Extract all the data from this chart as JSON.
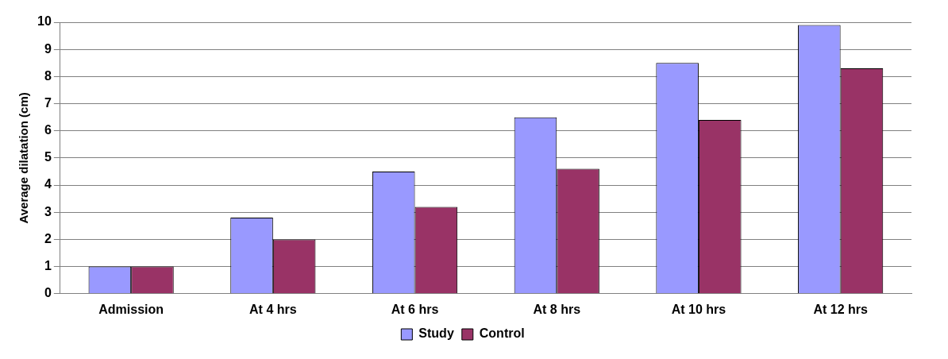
{
  "chart_data": {
    "type": "bar",
    "ylabel": "Average dilatation (cm)",
    "categories": [
      "Admission",
      "At 4 hrs",
      "At 6 hrs",
      "At 8 hrs",
      "At 10 hrs",
      "At 12 hrs"
    ],
    "series": [
      {
        "name": "Study",
        "color": "#9999ff",
        "values": [
          1.0,
          2.8,
          4.5,
          6.5,
          8.5,
          9.9
        ]
      },
      {
        "name": "Control",
        "color": "#993366",
        "values": [
          1.0,
          2.0,
          3.2,
          4.6,
          6.4,
          8.3
        ]
      }
    ],
    "ylim": [
      0,
      10
    ],
    "yticks": [
      0,
      1,
      2,
      3,
      4,
      5,
      6,
      7,
      8,
      9,
      10
    ],
    "grid": "y",
    "legend": "bottom"
  }
}
